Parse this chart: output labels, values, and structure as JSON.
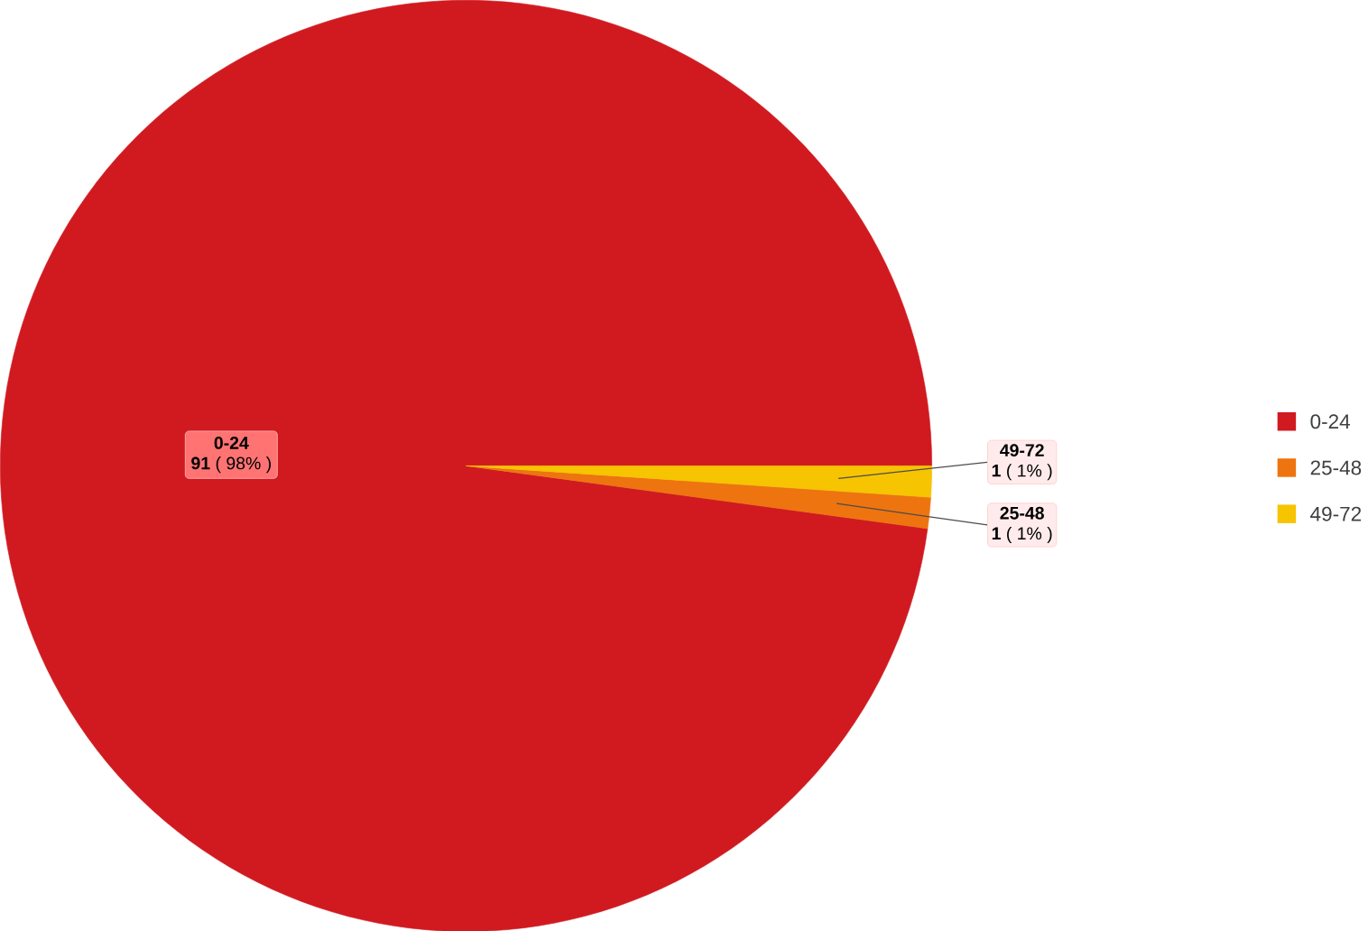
{
  "chart_data": {
    "type": "pie",
    "categories": [
      "0-24",
      "25-48",
      "49-72"
    ],
    "values": [
      91,
      1,
      1
    ],
    "colors": [
      "#d01a20",
      "#ee7410",
      "#f6c400"
    ],
    "value_labels": [
      "**91** ( 98% )",
      "**1** ( 1% )",
      "**1** ( 1% )"
    ],
    "legend": "right"
  }
}
